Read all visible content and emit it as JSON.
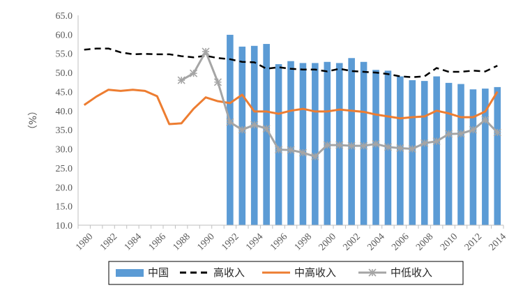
{
  "chart_data": {
    "type": "bar+line",
    "ylabel": "（%）",
    "ylim": [
      10,
      65
    ],
    "y_ticks": [
      10,
      15,
      20,
      25,
      30,
      35,
      40,
      45,
      50,
      55,
      60,
      65
    ],
    "y_tick_labels": [
      "10.0",
      "15.0",
      "20.0",
      "25.0",
      "30.0",
      "35.0",
      "40.0",
      "45.0",
      "50.0",
      "55.0",
      "60.0",
      "65.0"
    ],
    "x": [
      1980,
      1981,
      1982,
      1983,
      1984,
      1985,
      1986,
      1987,
      1988,
      1989,
      1990,
      1991,
      1992,
      1993,
      1994,
      1995,
      1996,
      1997,
      1998,
      1999,
      2000,
      2001,
      2002,
      2003,
      2004,
      2005,
      2006,
      2007,
      2008,
      2009,
      2010,
      2011,
      2012,
      2013,
      2014
    ],
    "x_tick_labels": [
      "1980",
      "1982",
      "1984",
      "1986",
      "1988",
      "1990",
      "1992",
      "1994",
      "1996",
      "1998",
      "2000",
      "2002",
      "2004",
      "2006",
      "2008",
      "2010",
      "2012",
      "2014"
    ],
    "x_tick_values": [
      1980,
      1982,
      1984,
      1986,
      1988,
      1990,
      1992,
      1994,
      1996,
      1998,
      2000,
      2002,
      2004,
      2006,
      2008,
      2010,
      2012,
      2014
    ],
    "grid": false,
    "legend_position": "bottom",
    "series": [
      {
        "name": "中国",
        "kind": "bar",
        "color": "#5B9BD5",
        "x": [
          1992,
          1993,
          1994,
          1995,
          1996,
          1997,
          1998,
          1999,
          2000,
          2001,
          2002,
          2003,
          2004,
          2005,
          2006,
          2007,
          2008,
          2009,
          2010,
          2011,
          2012,
          2013,
          2014
        ],
        "values": [
          59.9,
          56.8,
          57.0,
          57.5,
          52.2,
          53.0,
          52.5,
          52.5,
          52.8,
          52.5,
          53.8,
          52.8,
          50.7,
          50.5,
          49.0,
          48.0,
          47.8,
          49.0,
          47.3,
          47.0,
          45.6,
          45.8,
          46.2
        ]
      },
      {
        "name": "高收入",
        "kind": "dashed-line",
        "color": "#000000",
        "x": [
          1980,
          1981,
          1982,
          1983,
          1984,
          1985,
          1986,
          1987,
          1988,
          1989,
          1990,
          1991,
          1992,
          1993,
          1994,
          1995,
          1996,
          1997,
          1998,
          1999,
          2000,
          2001,
          2002,
          2003,
          2004,
          2005,
          2006,
          2007,
          2008,
          2009,
          2010,
          2011,
          2012,
          2013,
          2014
        ],
        "values": [
          56.0,
          56.3,
          56.3,
          55.3,
          54.8,
          54.9,
          54.8,
          54.8,
          54.3,
          54.0,
          54.4,
          53.8,
          53.5,
          52.8,
          52.7,
          51.0,
          51.4,
          51.0,
          50.8,
          50.8,
          50.3,
          51.0,
          50.4,
          50.2,
          50.0,
          49.6,
          49.0,
          48.8,
          49.0,
          51.2,
          50.2,
          50.2,
          50.5,
          50.3,
          51.8
        ]
      },
      {
        "name": "中高收入",
        "kind": "line",
        "color": "#ED7D31",
        "x": [
          1980,
          1981,
          1982,
          1983,
          1984,
          1985,
          1986,
          1987,
          1988,
          1989,
          1990,
          1991,
          1992,
          1993,
          1994,
          1995,
          1996,
          1997,
          1998,
          1999,
          2000,
          2001,
          2002,
          2003,
          2004,
          2005,
          2006,
          2007,
          2008,
          2009,
          2010,
          2011,
          2012,
          2013,
          2014
        ],
        "values": [
          41.5,
          43.7,
          45.5,
          45.2,
          45.5,
          45.2,
          43.8,
          36.5,
          36.7,
          40.5,
          43.5,
          42.5,
          42.0,
          44.2,
          39.8,
          39.8,
          39.2,
          40.0,
          40.5,
          39.8,
          39.8,
          40.3,
          40.0,
          39.7,
          39.0,
          38.5,
          38.0,
          38.3,
          38.5,
          40.0,
          39.3,
          38.3,
          38.3,
          39.8,
          45.0
        ]
      },
      {
        "name": "中低收入",
        "kind": "line-marker",
        "color": "#A5A5A5",
        "x": [
          1988,
          1989,
          1990,
          1991,
          1992,
          1993,
          1994,
          1995,
          1996,
          1997,
          1998,
          1999,
          2000,
          2001,
          2002,
          2003,
          2004,
          2005,
          2006,
          2007,
          2008,
          2009,
          2010,
          2011,
          2012,
          2013,
          2014
        ],
        "values": [
          48.0,
          49.8,
          55.5,
          47.5,
          37.0,
          35.0,
          36.3,
          35.3,
          29.8,
          29.7,
          29.0,
          28.0,
          31.0,
          31.0,
          30.8,
          30.8,
          31.3,
          30.5,
          30.2,
          30.0,
          31.5,
          32.0,
          33.9,
          34.0,
          35.0,
          37.6,
          34.3
        ]
      }
    ]
  }
}
